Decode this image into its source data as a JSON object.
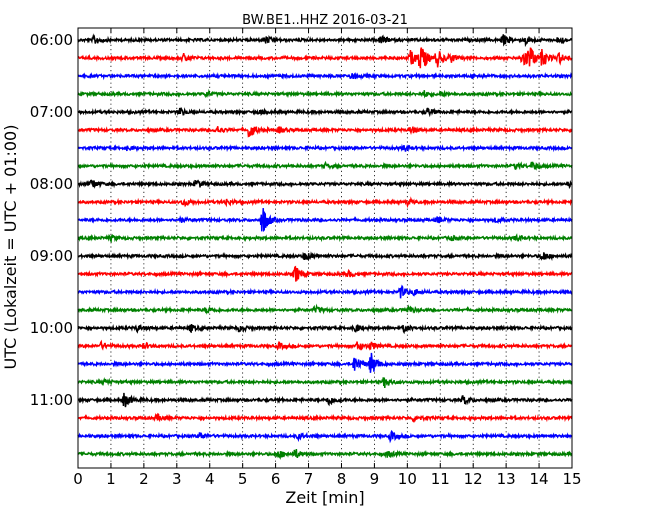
{
  "chart_data": {
    "type": "line",
    "subtype": "dayplot-seismogram",
    "title": "BW.BE1..HHZ 2016-03-21",
    "xlabel": "Zeit  [min]",
    "ylabel": "UTC (Lokalzeit = UTC + 01:00)",
    "xlim": [
      0,
      15
    ],
    "x_ticks": [
      "0",
      "1",
      "2",
      "3",
      "4",
      "5",
      "6",
      "7",
      "8",
      "9",
      "10",
      "11",
      "12",
      "13",
      "14",
      "15"
    ],
    "y_tick_labels": [
      "06:00",
      "07:00",
      "08:00",
      "09:00",
      "10:00",
      "11:00"
    ],
    "trace_interval_minutes": 15,
    "grid": "vertical dotted lines at each minute",
    "color_cycle": [
      "#000000",
      "#ff0000",
      "#0000ff",
      "#008000"
    ],
    "traces": [
      {
        "start": "06:00",
        "events": [
          {
            "t": 0.5,
            "a": 0.3
          },
          {
            "t": 5.7,
            "a": 0.25
          },
          {
            "t": 9.2,
            "a": 0.3
          },
          {
            "t": 12.9,
            "a": 0.35
          },
          {
            "t": 13.6,
            "a": 0.3
          },
          {
            "t": 14.6,
            "a": 0.3
          }
        ]
      },
      {
        "start": "06:15",
        "events": [
          {
            "t": 3.2,
            "a": 0.25
          },
          {
            "t": 10.1,
            "a": 0.5
          },
          {
            "t": 10.4,
            "a": 1.0
          },
          {
            "t": 10.9,
            "a": 0.6
          },
          {
            "t": 11.3,
            "a": 0.3
          },
          {
            "t": 13.5,
            "a": 0.7
          },
          {
            "t": 13.7,
            "a": 0.8
          },
          {
            "t": 14.1,
            "a": 0.55
          },
          {
            "t": 14.6,
            "a": 0.35
          }
        ]
      },
      {
        "start": "06:30",
        "events": [
          {
            "t": 8.3,
            "a": 0.2
          },
          {
            "t": 12.0,
            "a": 0.15
          }
        ]
      },
      {
        "start": "06:45",
        "events": [
          {
            "t": 3.9,
            "a": 0.15
          },
          {
            "t": 10.5,
            "a": 0.2
          },
          {
            "t": 11.0,
            "a": 0.15
          }
        ]
      },
      {
        "start": "07:00",
        "events": [
          {
            "t": 3.1,
            "a": 0.25
          },
          {
            "t": 5.5,
            "a": 0.15
          },
          {
            "t": 10.6,
            "a": 0.25
          }
        ]
      },
      {
        "start": "07:15",
        "events": [
          {
            "t": 4.2,
            "a": 0.3
          },
          {
            "t": 5.2,
            "a": 0.6
          },
          {
            "t": 6.1,
            "a": 0.2
          },
          {
            "t": 10.1,
            "a": 0.25
          }
        ]
      },
      {
        "start": "07:30",
        "events": [
          {
            "t": 1.5,
            "a": 0.15
          },
          {
            "t": 9.9,
            "a": 0.2
          }
        ]
      },
      {
        "start": "07:45",
        "events": [
          {
            "t": 7.5,
            "a": 0.15
          },
          {
            "t": 13.3,
            "a": 0.2
          },
          {
            "t": 13.8,
            "a": 0.3
          }
        ]
      },
      {
        "start": "08:00",
        "events": [
          {
            "t": 0.4,
            "a": 0.35
          },
          {
            "t": 3.6,
            "a": 0.3
          },
          {
            "t": 14.9,
            "a": 0.3
          }
        ]
      },
      {
        "start": "08:15",
        "events": [
          {
            "t": 3.2,
            "a": 0.25
          },
          {
            "t": 4.5,
            "a": 0.2
          },
          {
            "t": 10.0,
            "a": 0.2
          }
        ]
      },
      {
        "start": "08:30",
        "events": [
          {
            "t": 3.1,
            "a": 0.15
          },
          {
            "t": 5.6,
            "a": 1.0
          },
          {
            "t": 10.9,
            "a": 0.2
          },
          {
            "t": 12.7,
            "a": 0.15
          }
        ]
      },
      {
        "start": "08:45",
        "events": [
          {
            "t": 1.0,
            "a": 0.15
          },
          {
            "t": 11.3,
            "a": 0.15
          },
          {
            "t": 13.3,
            "a": 0.2
          }
        ]
      },
      {
        "start": "09:00",
        "events": [
          {
            "t": 6.9,
            "a": 0.3
          },
          {
            "t": 14.1,
            "a": 0.35
          }
        ]
      },
      {
        "start": "09:15",
        "events": [
          {
            "t": 6.6,
            "a": 0.55
          },
          {
            "t": 8.2,
            "a": 0.2
          }
        ]
      },
      {
        "start": "09:30",
        "events": [
          {
            "t": 9.8,
            "a": 0.4
          },
          {
            "t": 10.2,
            "a": 0.2
          }
        ]
      },
      {
        "start": "09:45",
        "events": [
          {
            "t": 3.9,
            "a": 0.2
          },
          {
            "t": 7.2,
            "a": 0.2
          },
          {
            "t": 10.0,
            "a": 0.2
          }
        ]
      },
      {
        "start": "10:00",
        "events": [
          {
            "t": 1.8,
            "a": 0.2
          },
          {
            "t": 3.4,
            "a": 0.25
          },
          {
            "t": 4.9,
            "a": 0.2
          },
          {
            "t": 8.4,
            "a": 0.3
          },
          {
            "t": 9.9,
            "a": 0.25
          }
        ]
      },
      {
        "start": "10:15",
        "events": [
          {
            "t": 0.7,
            "a": 0.2
          },
          {
            "t": 2.0,
            "a": 0.2
          },
          {
            "t": 6.1,
            "a": 0.2
          },
          {
            "t": 8.5,
            "a": 0.35
          },
          {
            "t": 8.9,
            "a": 0.25
          }
        ]
      },
      {
        "start": "10:30",
        "events": [
          {
            "t": 8.4,
            "a": 0.6
          },
          {
            "t": 8.9,
            "a": 0.8
          }
        ]
      },
      {
        "start": "10:45",
        "events": [
          {
            "t": 0.8,
            "a": 0.15
          },
          {
            "t": 9.3,
            "a": 0.35
          }
        ]
      },
      {
        "start": "11:00",
        "events": [
          {
            "t": 1.4,
            "a": 0.5
          },
          {
            "t": 7.6,
            "a": 0.35
          },
          {
            "t": 11.7,
            "a": 0.3
          }
        ]
      },
      {
        "start": "11:15",
        "events": [
          {
            "t": 2.4,
            "a": 0.2
          },
          {
            "t": 10.2,
            "a": 0.25
          }
        ]
      },
      {
        "start": "11:30",
        "events": [
          {
            "t": 3.7,
            "a": 0.25
          },
          {
            "t": 6.7,
            "a": 0.2
          },
          {
            "t": 9.5,
            "a": 0.3
          }
        ]
      },
      {
        "start": "11:45",
        "events": [
          {
            "t": 6.1,
            "a": 0.25
          },
          {
            "t": 6.6,
            "a": 0.3
          },
          {
            "t": 9.4,
            "a": 0.2
          }
        ]
      }
    ]
  }
}
